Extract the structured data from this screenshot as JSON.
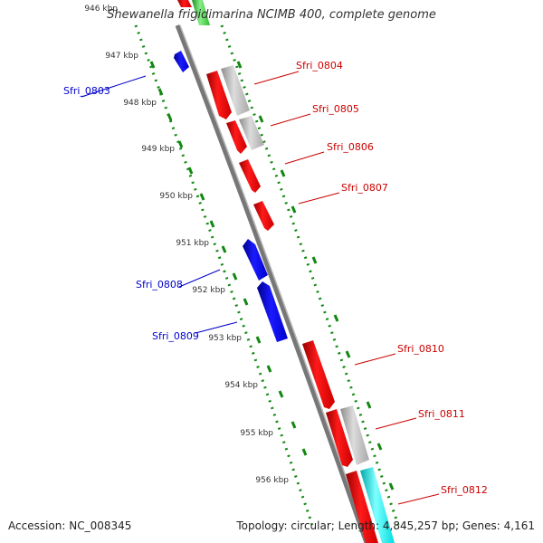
{
  "title": "Shewanella frigidimarina NCIMB 400, complete genome",
  "footer": {
    "accession": "Accession: NC_008345",
    "summary": "Topology: circular; Length: 4,845,257 bp; Genes: 4,161"
  },
  "colors": {
    "forward": "#ff0000",
    "reverse": "#0000ff",
    "gray": "#b8b8b8",
    "cyan": "#00ffff",
    "green": "#33cc33",
    "tick": "#118811",
    "backbone": "#888888"
  },
  "ticks": [
    "946 kbp",
    "947 kbp",
    "948 kbp",
    "949 kbp",
    "950 kbp",
    "951 kbp",
    "952 kbp",
    "953 kbp",
    "954 kbp",
    "955 kbp",
    "956 kbp"
  ],
  "gene_labels": [
    {
      "id": "Sfri_0803",
      "color": "#0000cc"
    },
    {
      "id": "Sfri_0804",
      "color": "#cc0000"
    },
    {
      "id": "Sfri_0805",
      "color": "#cc0000"
    },
    {
      "id": "Sfri_0806",
      "color": "#cc0000"
    },
    {
      "id": "Sfri_0807",
      "color": "#cc0000"
    },
    {
      "id": "Sfri_0808",
      "color": "#0000cc"
    },
    {
      "id": "Sfri_0809",
      "color": "#0000cc"
    },
    {
      "id": "Sfri_0810",
      "color": "#cc0000"
    },
    {
      "id": "Sfri_0811",
      "color": "#cc0000"
    },
    {
      "id": "Sfri_0812",
      "color": "#cc0000"
    }
  ]
}
